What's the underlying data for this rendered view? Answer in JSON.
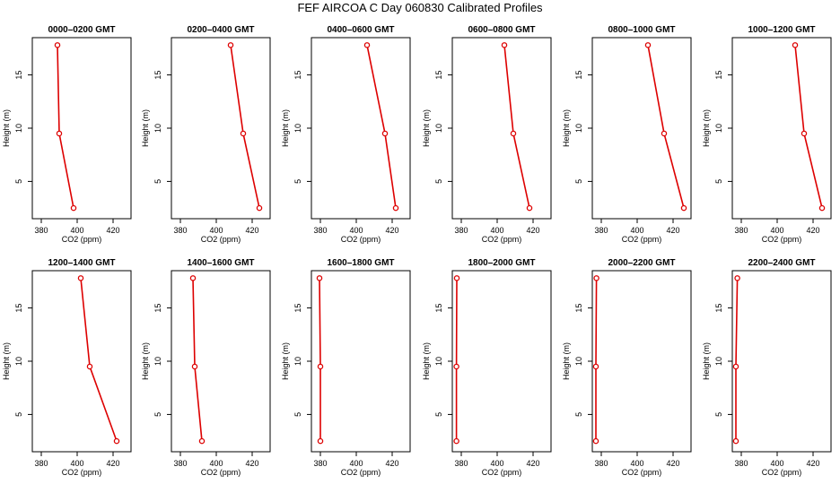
{
  "suptitle": "FEF AIRCOA C  Day 060830  Calibrated Profiles",
  "chart_data": [
    {
      "type": "line",
      "title": "0000–0200 GMT",
      "xlabel": "CO2 (ppm)",
      "ylabel": "Height (m)",
      "xlim": [
        375,
        430
      ],
      "ylim": [
        1.5,
        18.5
      ],
      "xticks": [
        380,
        400,
        420
      ],
      "yticks": [
        5,
        10,
        15
      ],
      "series": [
        {
          "x": [
            389,
            390,
            398
          ],
          "y": [
            17.8,
            9.5,
            2.5
          ]
        }
      ]
    },
    {
      "type": "line",
      "title": "0200–0400 GMT",
      "xlabel": "CO2 (ppm)",
      "ylabel": "Height (m)",
      "xlim": [
        375,
        430
      ],
      "ylim": [
        1.5,
        18.5
      ],
      "xticks": [
        380,
        400,
        420
      ],
      "yticks": [
        5,
        10,
        15
      ],
      "series": [
        {
          "x": [
            408,
            415,
            424
          ],
          "y": [
            17.8,
            9.5,
            2.5
          ]
        }
      ]
    },
    {
      "type": "line",
      "title": "0400–0600 GMT",
      "xlabel": "CO2 (ppm)",
      "ylabel": "Height (m)",
      "xlim": [
        375,
        430
      ],
      "ylim": [
        1.5,
        18.5
      ],
      "xticks": [
        380,
        400,
        420
      ],
      "yticks": [
        5,
        10,
        15
      ],
      "series": [
        {
          "x": [
            406,
            416,
            422
          ],
          "y": [
            17.8,
            9.5,
            2.5
          ]
        }
      ]
    },
    {
      "type": "line",
      "title": "0600–0800 GMT",
      "xlabel": "CO2 (ppm)",
      "ylabel": "Height (m)",
      "xlim": [
        375,
        430
      ],
      "ylim": [
        1.5,
        18.5
      ],
      "xticks": [
        380,
        400,
        420
      ],
      "yticks": [
        5,
        10,
        15
      ],
      "series": [
        {
          "x": [
            404,
            409,
            418
          ],
          "y": [
            17.8,
            9.5,
            2.5
          ]
        }
      ]
    },
    {
      "type": "line",
      "title": "0800–1000 GMT",
      "xlabel": "CO2 (ppm)",
      "ylabel": "Height (m)",
      "xlim": [
        375,
        430
      ],
      "ylim": [
        1.5,
        18.5
      ],
      "xticks": [
        380,
        400,
        420
      ],
      "yticks": [
        5,
        10,
        15
      ],
      "series": [
        {
          "x": [
            406,
            415,
            426
          ],
          "y": [
            17.8,
            9.5,
            2.5
          ]
        }
      ]
    },
    {
      "type": "line",
      "title": "1000–1200 GMT",
      "xlabel": "CO2 (ppm)",
      "ylabel": "Height (m)",
      "xlim": [
        375,
        430
      ],
      "ylim": [
        1.5,
        18.5
      ],
      "xticks": [
        380,
        400,
        420
      ],
      "yticks": [
        5,
        10,
        15
      ],
      "series": [
        {
          "x": [
            410,
            415,
            425
          ],
          "y": [
            17.8,
            9.5,
            2.5
          ]
        }
      ]
    },
    {
      "type": "line",
      "title": "1200–1400 GMT",
      "xlabel": "CO2 (ppm)",
      "ylabel": "Height (m)",
      "xlim": [
        375,
        430
      ],
      "ylim": [
        1.5,
        18.5
      ],
      "xticks": [
        380,
        400,
        420
      ],
      "yticks": [
        5,
        10,
        15
      ],
      "series": [
        {
          "x": [
            402,
            407,
            422
          ],
          "y": [
            17.8,
            9.5,
            2.5
          ]
        }
      ]
    },
    {
      "type": "line",
      "title": "1400–1600 GMT",
      "xlabel": "CO2 (ppm)",
      "ylabel": "Height (m)",
      "xlim": [
        375,
        430
      ],
      "ylim": [
        1.5,
        18.5
      ],
      "xticks": [
        380,
        400,
        420
      ],
      "yticks": [
        5,
        10,
        15
      ],
      "series": [
        {
          "x": [
            387,
            388,
            392
          ],
          "y": [
            17.8,
            9.5,
            2.5
          ]
        }
      ]
    },
    {
      "type": "line",
      "title": "1600–1800 GMT",
      "xlabel": "CO2 (ppm)",
      "ylabel": "Height (m)",
      "xlim": [
        375,
        430
      ],
      "ylim": [
        1.5,
        18.5
      ],
      "xticks": [
        380,
        400,
        420
      ],
      "yticks": [
        5,
        10,
        15
      ],
      "series": [
        {
          "x": [
            379.5,
            380,
            380
          ],
          "y": [
            17.8,
            9.5,
            2.5
          ]
        }
      ]
    },
    {
      "type": "line",
      "title": "1800–2000 GMT",
      "xlabel": "CO2 (ppm)",
      "ylabel": "Height (m)",
      "xlim": [
        375,
        430
      ],
      "ylim": [
        1.5,
        18.5
      ],
      "xticks": [
        380,
        400,
        420
      ],
      "yticks": [
        5,
        10,
        15
      ],
      "series": [
        {
          "x": [
            377.5,
            377.3,
            377.3
          ],
          "y": [
            17.8,
            9.5,
            2.5
          ]
        }
      ]
    },
    {
      "type": "line",
      "title": "2000–2200 GMT",
      "xlabel": "CO2 (ppm)",
      "ylabel": "Height (m)",
      "xlim": [
        375,
        430
      ],
      "ylim": [
        1.5,
        18.5
      ],
      "xticks": [
        380,
        400,
        420
      ],
      "yticks": [
        5,
        10,
        15
      ],
      "series": [
        {
          "x": [
            377.3,
            377,
            377
          ],
          "y": [
            17.8,
            9.5,
            2.5
          ]
        }
      ]
    },
    {
      "type": "line",
      "title": "2200–2400 GMT",
      "xlabel": "CO2 (ppm)",
      "ylabel": "Height (m)",
      "xlim": [
        375,
        430
      ],
      "ylim": [
        1.5,
        18.5
      ],
      "xticks": [
        380,
        400,
        420
      ],
      "yticks": [
        5,
        10,
        15
      ],
      "series": [
        {
          "x": [
            377.8,
            377,
            377
          ],
          "y": [
            17.8,
            9.5,
            2.5
          ]
        }
      ]
    }
  ],
  "colors": {
    "series": "#dd0000",
    "axis": "#000000"
  }
}
